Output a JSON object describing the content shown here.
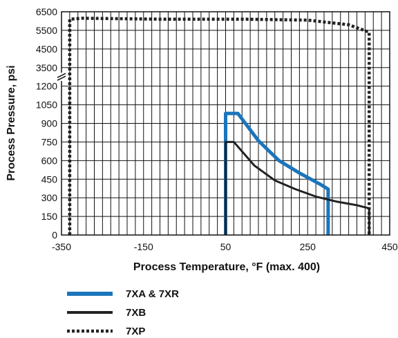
{
  "chart_data": {
    "type": "line",
    "xlabel": "Process Temperature, °F (max. 400)",
    "ylabel": "Process Pressure, psi",
    "x_ticks": [
      "-350",
      "-150",
      "50",
      "250",
      "450"
    ],
    "xlim": [
      -350,
      450
    ],
    "y_ticks": [
      "0",
      "150",
      "300",
      "450",
      "600",
      "750",
      "900",
      "1050",
      "1200",
      "3500",
      "4500",
      "5500",
      "6500"
    ],
    "y_scale": "broken axis: 0–1200 linear (150 per division), axis break, then 3500–6500 (1000 per division)",
    "grid": true,
    "legend_position": "below",
    "series": [
      {
        "name": "7XA & 7XR",
        "color": "#1b75bb",
        "style": "solid",
        "x": [
          50,
          50,
          80,
          130,
          180,
          230,
          280,
          300,
          300
        ],
        "y": [
          0,
          980,
          980,
          760,
          600,
          500,
          410,
          370,
          0
        ]
      },
      {
        "name": "7XB",
        "color": "#222222",
        "style": "solid",
        "x": [
          50,
          50,
          70,
          120,
          170,
          220,
          270,
          320,
          370,
          400,
          400
        ],
        "y": [
          0,
          750,
          750,
          560,
          440,
          370,
          310,
          270,
          240,
          215,
          0
        ]
      },
      {
        "name": "7XP",
        "color": "#222222",
        "style": "dotted",
        "x": [
          -330,
          -330,
          -300,
          -100,
          100,
          250,
          350,
          400,
          400
        ],
        "y": [
          0,
          6100,
          6150,
          6100,
          6100,
          6050,
          5800,
          5400,
          0
        ]
      }
    ]
  }
}
